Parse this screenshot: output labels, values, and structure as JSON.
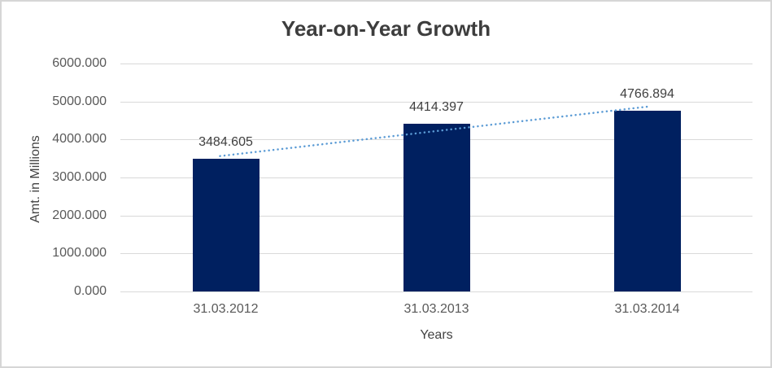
{
  "chart_data": {
    "type": "bar",
    "title": "Year-on-Year Growth",
    "xlabel": "Years",
    "ylabel": "Amt. in Millions",
    "categories": [
      "31.03.2012",
      "31.03.2013",
      "31.03.2014"
    ],
    "series": [
      {
        "name": "Amount",
        "values": [
          3484.605,
          4414.397,
          4766.894
        ],
        "data_labels": [
          "3484.605",
          "4414.397",
          "4766.894"
        ]
      }
    ],
    "ylim": [
      0,
      6000
    ],
    "ytick_step": 1000,
    "ytick_labels": [
      "0.000",
      "1000.000",
      "2000.000",
      "3000.000",
      "4000.000",
      "5000.000",
      "6000.000"
    ],
    "grid": true,
    "legend": "none",
    "trendline": {
      "kind": "linear",
      "style": "dotted"
    },
    "colors": {
      "bar_fill": "#002060",
      "trendline": "#5B9BD5",
      "gridline": "#d9d9d9",
      "tick_text": "#595959",
      "title_text": "#3d3d3d",
      "axis_title_text": "#424242",
      "data_label_text": "#3f3f3f",
      "chart_border": "#d6d6d6",
      "background": "#ffffff"
    }
  }
}
